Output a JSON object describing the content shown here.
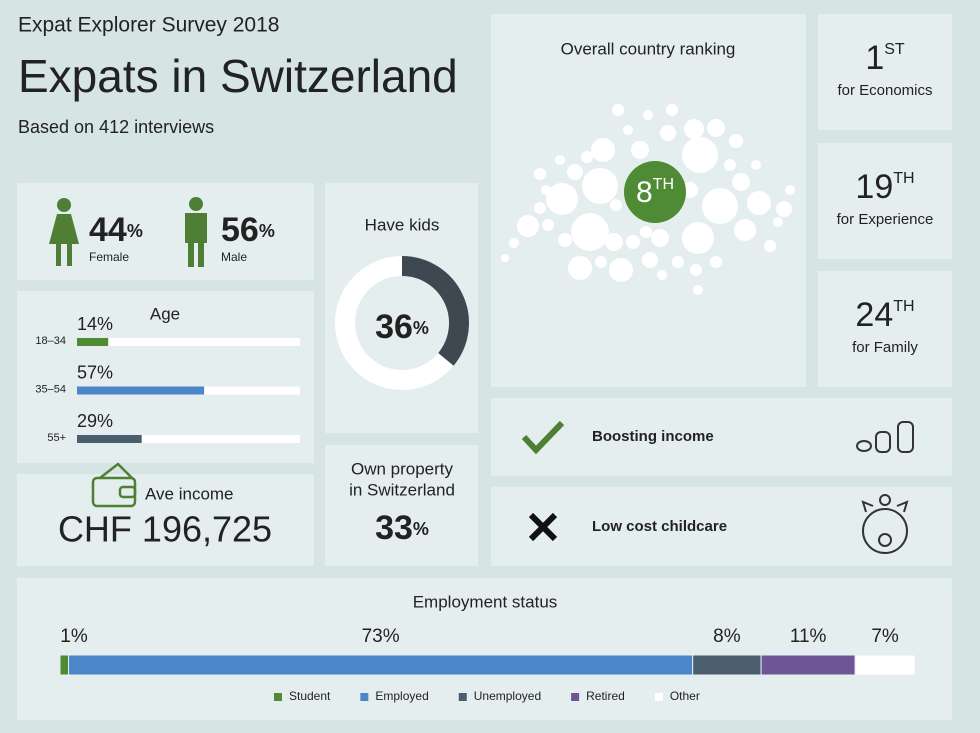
{
  "header": {
    "kicker": "Expat Explorer Survey 2018",
    "title": "Expats in Switzerland",
    "subtitle": "Based on 412 interviews"
  },
  "gender": {
    "items": [
      {
        "value": 44,
        "unit": "%",
        "label": "Female",
        "color": "#4f7f34"
      },
      {
        "value": 56,
        "unit": "%",
        "label": "Male",
        "color": "#4f7f34"
      }
    ]
  },
  "age": {
    "title": "Age",
    "xlim": [
      0,
      100
    ],
    "groups": [
      {
        "label": "18–34",
        "value": 14,
        "value_label": "14%",
        "color": "#4f8a35"
      },
      {
        "label": "35–54",
        "value": 57,
        "value_label": "57%",
        "color": "#4a86c8"
      },
      {
        "label": "55+",
        "value": 29,
        "value_label": "29%",
        "color": "#4a5e6e"
      }
    ]
  },
  "income": {
    "label": "Ave income",
    "value": "CHF 196,725"
  },
  "kids": {
    "title": "Have kids",
    "value": 36,
    "unit": "%",
    "lim": [
      0,
      100
    ],
    "color": "#3f4850"
  },
  "property": {
    "title_lines": [
      "Own property",
      "in Switzerland"
    ],
    "value": 33,
    "unit": "%"
  },
  "ranking": {
    "title": "Overall country ranking",
    "rank": 8,
    "suffix": "TH"
  },
  "rankings": [
    {
      "rank": 1,
      "suffix": "ST",
      "label": "for Economics"
    },
    {
      "rank": 19,
      "suffix": "TH",
      "label": "for Experience"
    },
    {
      "rank": 24,
      "suffix": "TH",
      "label": "for Family"
    }
  ],
  "features": [
    {
      "label": "Boosting income"
    },
    {
      "label": "Low cost childcare"
    }
  ],
  "employment": {
    "title": "Employment status",
    "xlim": [
      0,
      100
    ],
    "series": [
      {
        "name": "Student",
        "value": 1,
        "value_label": "1%",
        "color": "#4f8a35"
      },
      {
        "name": "Employed",
        "value": 73,
        "value_label": "73%",
        "color": "#4a86c8"
      },
      {
        "name": "Unemployed",
        "value": 8,
        "value_label": "8%",
        "color": "#4a5e6e"
      },
      {
        "name": "Retired",
        "value": 11,
        "value_label": "11%",
        "color": "#6e5596"
      },
      {
        "name": "Other",
        "value": 7,
        "value_label": "7%",
        "color": "#ffffff"
      }
    ]
  }
}
